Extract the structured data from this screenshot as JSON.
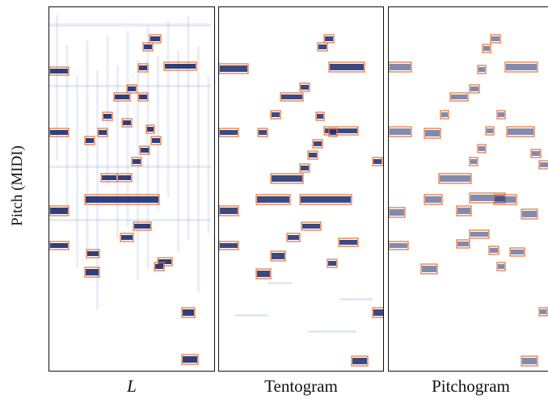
{
  "figure": {
    "ylabel": "Pitch (MIDI)",
    "panels": [
      {
        "id": "L",
        "title": "L",
        "italic": true
      },
      {
        "id": "tentogram",
        "title": "Tentogram",
        "italic": false
      },
      {
        "id": "pitchogram",
        "title": "Pitchogram",
        "italic": false
      }
    ]
  },
  "colors": {
    "energy": "#1b2a6b",
    "energy_light": "#8fa2d8",
    "box": "#e0703a",
    "frame": "#111111"
  }
}
